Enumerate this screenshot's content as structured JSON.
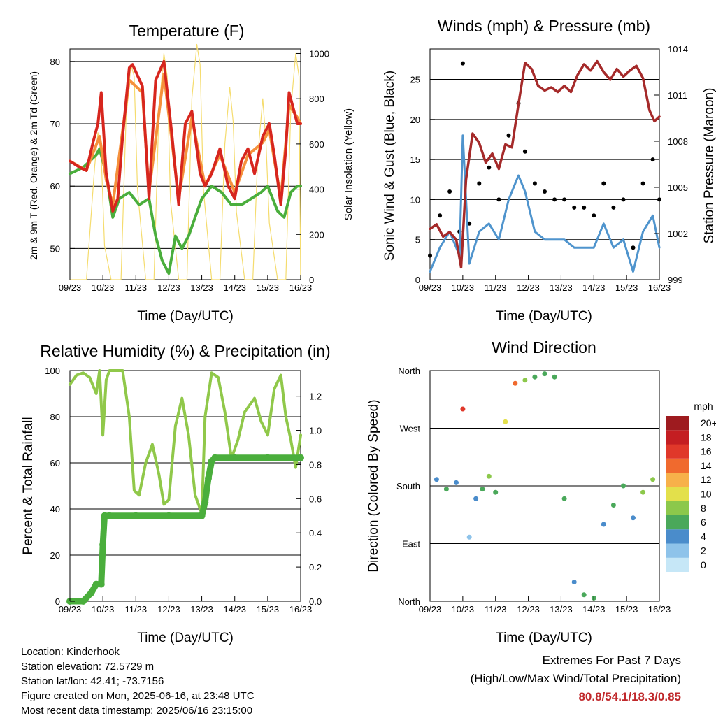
{
  "x_ticks": [
    "09/23",
    "10/23",
    "11/23",
    "12/23",
    "13/23",
    "14/23",
    "15/23",
    "16/23"
  ],
  "temperature": {
    "title": "Temperature (F)",
    "xlabel": "Time (Day/UTC)",
    "ylabel_left": "2m & 9m T (Red, Orange) & 2m Td (Green)",
    "ylabel_right": "Solar Insolation (Yellow)",
    "yticks_left": [
      "50",
      "60",
      "70",
      "80"
    ],
    "yticks_right": [
      "0",
      "200",
      "400",
      "600",
      "800",
      "1000"
    ]
  },
  "winds": {
    "title": "Winds (mph) & Pressure (mb)",
    "xlabel": "Time (Day/UTC)",
    "ylabel_left": "Sonic Wind & Gust (Blue, Black)",
    "ylabel_right": "Station Pressure (Maroon)",
    "yticks_left": [
      "0",
      "5",
      "10",
      "15",
      "20",
      "25"
    ],
    "yticks_right": [
      "999",
      "1002",
      "1005",
      "1008",
      "1011",
      "1014"
    ]
  },
  "humidity": {
    "title": "Relative Humidity (%) & Precipitation (in)",
    "xlabel": "Time (Day/UTC)",
    "ylabel_left": "Percent & Total Rainfall",
    "yticks_left": [
      "0",
      "20",
      "40",
      "60",
      "80",
      "100"
    ],
    "yticks_right": [
      "0.0",
      "0.2",
      "0.4",
      "0.6",
      "0.8",
      "1.0",
      "1.2"
    ]
  },
  "direction": {
    "title": "Wind Direction",
    "xlabel": "Time (Day/UTC)",
    "ylabel_left": "Direction (Colored By Speed)",
    "yticks_left": [
      "North",
      "East",
      "South",
      "West",
      "North"
    ],
    "legend_unit": "mph",
    "legend_labels": [
      "0",
      "2",
      "4",
      "6",
      "8",
      "10",
      "12",
      "14",
      "16",
      "18",
      "20+"
    ],
    "legend_colors": [
      "#c6e7f7",
      "#8ec3ea",
      "#4a8ccb",
      "#4aa85a",
      "#8cc84b",
      "#e3e04b",
      "#f7b14a",
      "#f06a2e",
      "#e0382a",
      "#c41e22",
      "#9e1b1f"
    ]
  },
  "colors": {
    "temp_2m": "#d7261e",
    "temp_9m": "#f5913c",
    "dewpoint": "#4aae3c",
    "solar": "#f5dc6e",
    "gust": "#000000",
    "wind": "#4f94cd",
    "pressure": "#a52a2a",
    "rh": "#90c84a",
    "precip": "#4aae3c",
    "extremes": "#c0282b"
  },
  "footer": {
    "location": "Location: Kinderhook",
    "elevation": "Station elevation: 72.5729 m",
    "latlon": "Station lat/lon: 42.41; -73.7156",
    "created": "Figure created on Mon, 2025-06-16, at 23:48 UTC",
    "latest": "Most recent data timestamp: 2025/06/16 23:15:00"
  },
  "extremes": {
    "title": "Extremes For Past 7 Days",
    "subtitle": "(High/Low/Max Wind/Total Precipitation)",
    "values": "80.8/54.1/18.3/0.85"
  },
  "chart_data": [
    {
      "type": "line",
      "title": "Temperature (F)",
      "xlabel": "Time (Day/UTC)",
      "ylabel": "2m & 9m T (Red, Orange) & 2m Td (Green)",
      "ylabel_right": "Solar Insolation (Yellow)",
      "x_unit": "days since 09/23 UTC",
      "xlim": [
        0,
        7
      ],
      "ylim": [
        45,
        82
      ],
      "ylim_right": [
        0,
        1020
      ],
      "series": [
        {
          "name": "2m T",
          "axis": "left",
          "color": "#d7261e",
          "x": [
            0,
            0.3,
            0.5,
            0.7,
            0.85,
            0.95,
            1.1,
            1.3,
            1.45,
            1.6,
            1.8,
            1.9,
            2.2,
            2.4,
            2.6,
            2.85,
            3.1,
            3.3,
            3.5,
            3.7,
            3.95,
            4.1,
            4.3,
            4.55,
            4.8,
            5.0,
            5.2,
            5.4,
            5.6,
            5.85,
            6.05,
            6.2,
            6.4,
            6.55,
            6.65,
            6.8,
            6.9,
            7.0
          ],
          "y": [
            64,
            63,
            62.5,
            67,
            70,
            75,
            62,
            56,
            58,
            68,
            79,
            79.5,
            76,
            58,
            77,
            80,
            68,
            57,
            70,
            72,
            62,
            60,
            62,
            66,
            60,
            58,
            64,
            66,
            62,
            68,
            70,
            65,
            57,
            66,
            75,
            72,
            70,
            70
          ]
        },
        {
          "name": "9m T",
          "axis": "left",
          "color": "#f5913c",
          "x": [
            0,
            0.5,
            0.9,
            1.1,
            1.3,
            1.8,
            2.2,
            2.4,
            2.85,
            3.1,
            3.3,
            3.7,
            4.1,
            4.55,
            5.0,
            5.4,
            5.85,
            6.05,
            6.4,
            6.65,
            6.9,
            7.0
          ],
          "y": [
            64,
            62.5,
            68,
            61,
            57,
            77,
            75,
            59,
            78,
            67,
            58,
            71,
            60,
            65,
            59,
            65,
            67,
            69,
            58,
            73,
            71,
            70
          ]
        },
        {
          "name": "2m Td",
          "axis": "left",
          "color": "#4aae3c",
          "x": [
            0,
            0.4,
            0.8,
            0.9,
            1.1,
            1.3,
            1.5,
            1.8,
            2.1,
            2.4,
            2.6,
            2.8,
            3.0,
            3.2,
            3.4,
            3.6,
            3.8,
            4.0,
            4.3,
            4.6,
            4.9,
            5.2,
            5.5,
            5.8,
            6.0,
            6.3,
            6.5,
            6.7,
            6.9,
            7.0
          ],
          "y": [
            62,
            63,
            65,
            66,
            62,
            55,
            58,
            59,
            57,
            58,
            52,
            48,
            46,
            52,
            50,
            52,
            55,
            58,
            60,
            59,
            57,
            57,
            58,
            59,
            60,
            56,
            55,
            59,
            60,
            60
          ]
        },
        {
          "name": "Solar Insolation",
          "axis": "right",
          "color": "#f5dc6e",
          "x": [
            0,
            0.5,
            0.75,
            0.85,
            0.95,
            1.05,
            1.25,
            1.55,
            1.7,
            1.85,
            1.95,
            2.05,
            2.3,
            2.55,
            2.7,
            2.85,
            2.95,
            3.05,
            3.3,
            3.55,
            3.7,
            3.85,
            3.95,
            4.05,
            4.3,
            4.55,
            4.7,
            4.85,
            4.95,
            5.05,
            5.3,
            5.55,
            5.7,
            5.85,
            5.95,
            6.05,
            6.3,
            6.55,
            6.7,
            6.85,
            6.95,
            7.0
          ],
          "y": [
            0,
            0,
            500,
            650,
            550,
            150,
            0,
            0,
            700,
            950,
            900,
            400,
            0,
            0,
            750,
            1000,
            900,
            350,
            0,
            0,
            800,
            1040,
            950,
            400,
            0,
            0,
            600,
            850,
            700,
            300,
            0,
            0,
            550,
            800,
            600,
            250,
            0,
            0,
            750,
            1000,
            900,
            0
          ]
        }
      ]
    },
    {
      "type": "line",
      "title": "Winds (mph) & Pressure (mb)",
      "xlabel": "Time (Day/UTC)",
      "ylabel": "Sonic Wind & Gust (Blue, Black)",
      "ylabel_right": "Station Pressure (Maroon)",
      "x_unit": "days since 09/23 UTC",
      "xlim": [
        0,
        7
      ],
      "ylim": [
        0,
        28.8
      ],
      "ylim_right": [
        999,
        1014
      ],
      "series": [
        {
          "name": "Gust",
          "axis": "left",
          "color": "#000000",
          "x": [
            0,
            0.3,
            0.6,
            0.9,
            1.0,
            1.2,
            1.5,
            1.8,
            2.1,
            2.4,
            2.7,
            2.9,
            3.2,
            3.5,
            3.8,
            4.1,
            4.4,
            4.7,
            5.0,
            5.3,
            5.6,
            5.9,
            6.2,
            6.5,
            6.8,
            7.0
          ],
          "y": [
            3,
            8,
            11,
            6,
            27,
            7,
            12,
            14,
            10,
            18,
            22,
            16,
            12,
            11,
            10,
            10,
            9,
            9,
            8,
            12,
            9,
            10,
            4,
            12,
            15,
            10
          ]
        },
        {
          "name": "Wind",
          "axis": "left",
          "color": "#4f94cd",
          "x": [
            0,
            0.3,
            0.6,
            0.9,
            1.0,
            1.2,
            1.5,
            1.8,
            2.1,
            2.4,
            2.7,
            2.9,
            3.2,
            3.5,
            3.8,
            4.1,
            4.4,
            4.7,
            5.0,
            5.3,
            5.6,
            5.9,
            6.2,
            6.5,
            6.8,
            7.0
          ],
          "y": [
            1,
            4,
            6,
            3,
            18,
            2,
            6,
            7,
            5,
            10,
            13,
            11,
            6,
            5,
            5,
            5,
            4,
            4,
            4,
            7,
            4,
            5,
            1,
            6,
            8,
            4
          ]
        },
        {
          "name": "Pressure",
          "axis": "right",
          "color": "#a52a2a",
          "x": [
            0,
            0.2,
            0.4,
            0.6,
            0.8,
            0.95,
            1.1,
            1.3,
            1.5,
            1.7,
            1.9,
            2.1,
            2.3,
            2.5,
            2.7,
            2.9,
            3.1,
            3.3,
            3.5,
            3.7,
            3.9,
            4.1,
            4.3,
            4.5,
            4.7,
            4.9,
            5.1,
            5.3,
            5.5,
            5.7,
            5.9,
            6.1,
            6.3,
            6.5,
            6.7,
            6.85,
            7.0
          ],
          "y": [
            1002.3,
            1002.6,
            1001.8,
            1002.1,
            1001.6,
            999.8,
            1005.5,
            1008.5,
            1007.9,
            1006.6,
            1007.2,
            1006.2,
            1007.8,
            1007.6,
            1010.4,
            1013.1,
            1012.7,
            1011.6,
            1011.3,
            1011.5,
            1011.2,
            1011.6,
            1011.2,
            1012.3,
            1013.0,
            1012.6,
            1013.2,
            1012.5,
            1012.0,
            1012.7,
            1012.2,
            1012.6,
            1012.9,
            1012.1,
            1010.0,
            1009.3,
            1009.6
          ]
        }
      ]
    },
    {
      "type": "line",
      "title": "Relative Humidity (%) & Precipitation (in)",
      "xlabel": "Time (Day/UTC)",
      "ylabel": "Percent & Total Rainfall",
      "x_unit": "days since 09/23 UTC",
      "xlim": [
        0,
        7
      ],
      "ylim": [
        0,
        100
      ],
      "ylim_right": [
        0,
        1.35
      ],
      "series": [
        {
          "name": "Relative Humidity",
          "axis": "left",
          "color": "#90c84a",
          "x": [
            0,
            0.2,
            0.4,
            0.6,
            0.8,
            0.9,
            1.0,
            1.1,
            1.2,
            1.4,
            1.6,
            1.8,
            1.95,
            2.1,
            2.3,
            2.5,
            2.7,
            2.85,
            3.0,
            3.2,
            3.4,
            3.6,
            3.8,
            4.0,
            4.1,
            4.3,
            4.5,
            4.7,
            4.9,
            5.1,
            5.3,
            5.6,
            5.8,
            6.0,
            6.2,
            6.4,
            6.55,
            6.7,
            6.85,
            7.0
          ],
          "y": [
            94,
            98,
            99,
            97,
            90,
            100,
            72,
            96,
            100,
            100,
            100,
            80,
            48,
            46,
            60,
            68,
            55,
            42,
            44,
            76,
            88,
            72,
            46,
            38,
            80,
            99,
            97,
            82,
            62,
            70,
            82,
            88,
            78,
            72,
            92,
            98,
            80,
            70,
            58,
            72
          ]
        },
        {
          "name": "Total Precipitation",
          "axis": "right",
          "color": "#4aae3c",
          "x": [
            0,
            0.4,
            0.65,
            0.8,
            0.95,
            1.0,
            1.05,
            1.2,
            2.0,
            3.0,
            4.0,
            4.1,
            4.2,
            4.3,
            4.4,
            5.0,
            6.0,
            7.0
          ],
          "y": [
            0,
            0,
            0.05,
            0.1,
            0.1,
            0.33,
            0.5,
            0.5,
            0.5,
            0.5,
            0.5,
            0.58,
            0.72,
            0.82,
            0.84,
            0.84,
            0.84,
            0.84
          ]
        }
      ]
    },
    {
      "type": "scatter",
      "title": "Wind Direction",
      "xlabel": "Time (Day/UTC)",
      "ylabel": "Direction (Colored By Speed)",
      "x_unit": "days since 09/23 UTC",
      "xlim": [
        0,
        7
      ],
      "ylim": [
        0,
        360
      ],
      "legend": {
        "unit": "mph",
        "labels": [
          "0",
          "2",
          "4",
          "6",
          "8",
          "10",
          "12",
          "14",
          "16",
          "18",
          "20+"
        ]
      },
      "series": [
        {
          "name": "Wind Direction",
          "x": [
            0.2,
            0.5,
            0.8,
            1.0,
            1.2,
            1.4,
            1.6,
            1.8,
            2.0,
            2.3,
            2.6,
            2.9,
            3.2,
            3.5,
            3.8,
            4.1,
            4.4,
            4.7,
            5.0,
            5.3,
            5.6,
            5.9,
            6.2,
            6.5,
            6.8
          ],
          "y": [
            190,
            175,
            185,
            300,
            100,
            160,
            175,
            195,
            170,
            280,
            340,
            345,
            350,
            355,
            350,
            160,
            30,
            10,
            5,
            120,
            150,
            180,
            130,
            170,
            190
          ],
          "speed": [
            4,
            6,
            4,
            16,
            2,
            4,
            6,
            8,
            5,
            10,
            14,
            8,
            6,
            6,
            5,
            6,
            4,
            6,
            6,
            4,
            5,
            6,
            4,
            8,
            8
          ]
        }
      ]
    }
  ]
}
